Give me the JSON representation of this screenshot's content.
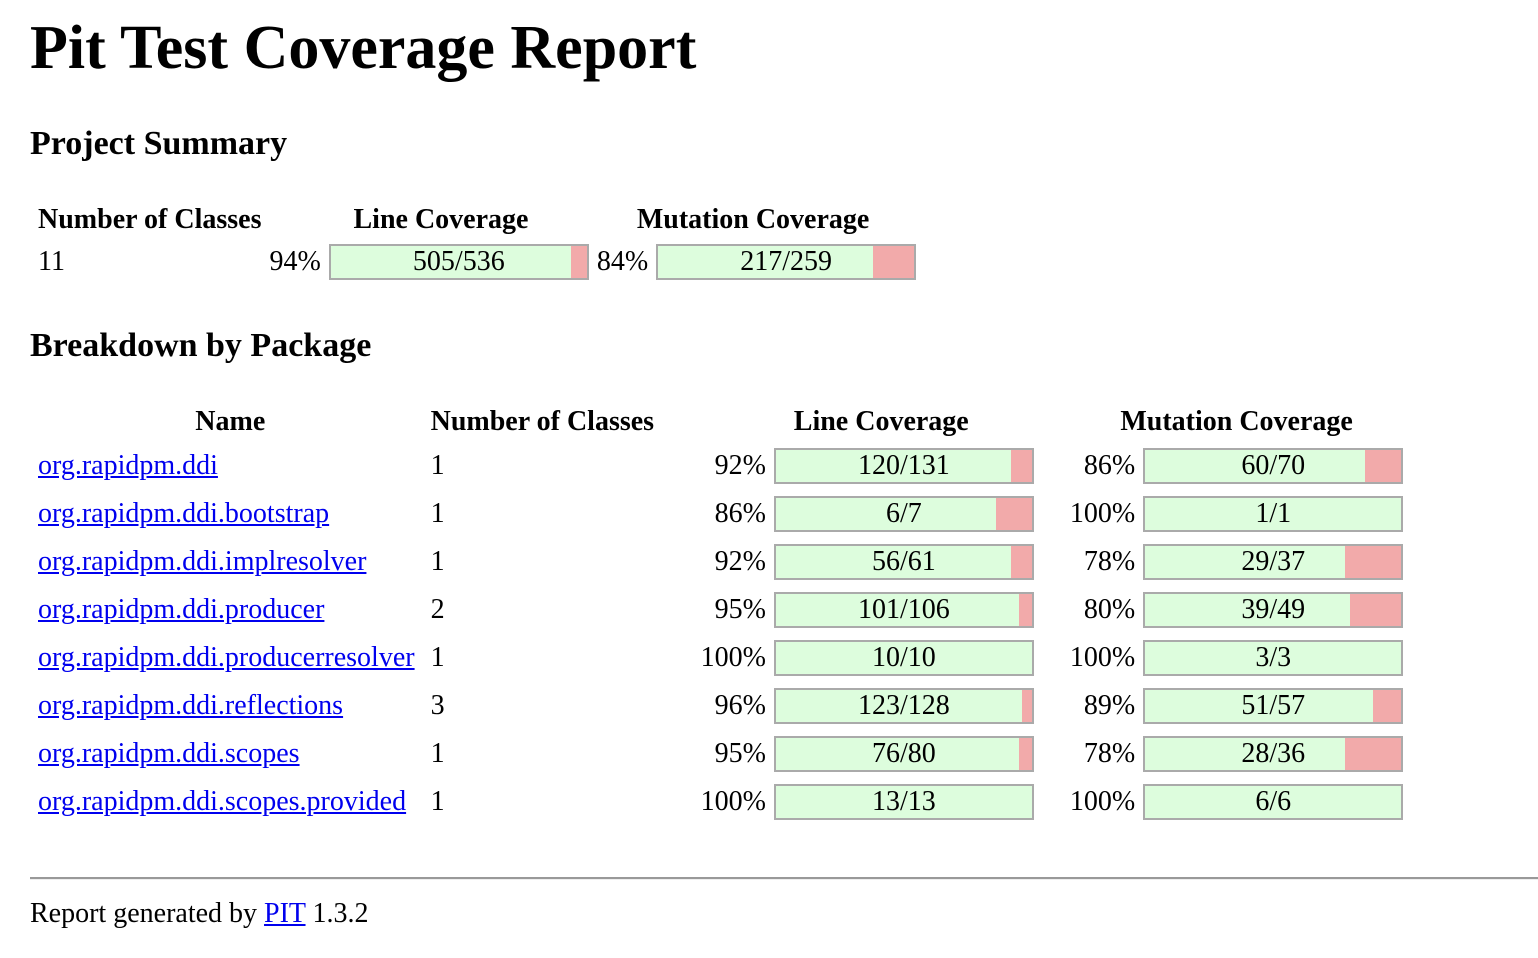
{
  "title": "Pit Test Coverage Report",
  "summary": {
    "heading": "Project Summary",
    "headers": {
      "classes": "Number of Classes",
      "line": "Line Coverage",
      "mutation": "Mutation Coverage"
    },
    "classes": "11",
    "line": {
      "pct": "94%",
      "text": "505/536",
      "fraction": 0.94
    },
    "mutation": {
      "pct": "84%",
      "text": "217/259",
      "fraction": 0.84
    }
  },
  "breakdown": {
    "heading": "Breakdown by Package",
    "headers": {
      "name": "Name",
      "classes": "Number of Classes",
      "line": "Line Coverage",
      "mutation": "Mutation Coverage"
    },
    "rows": [
      {
        "name": "org.rapidpm.ddi",
        "classes": "1",
        "line_pct": "92%",
        "line_text": "120/131",
        "line_fraction": 0.92,
        "mut_pct": "86%",
        "mut_text": "60/70",
        "mut_fraction": 0.86
      },
      {
        "name": "org.rapidpm.ddi.bootstrap",
        "classes": "1",
        "line_pct": "86%",
        "line_text": "6/7",
        "line_fraction": 0.86,
        "mut_pct": "100%",
        "mut_text": "1/1",
        "mut_fraction": 1.0
      },
      {
        "name": "org.rapidpm.ddi.implresolver",
        "classes": "1",
        "line_pct": "92%",
        "line_text": "56/61",
        "line_fraction": 0.92,
        "mut_pct": "78%",
        "mut_text": "29/37",
        "mut_fraction": 0.78
      },
      {
        "name": "org.rapidpm.ddi.producer",
        "classes": "2",
        "line_pct": "95%",
        "line_text": "101/106",
        "line_fraction": 0.95,
        "mut_pct": "80%",
        "mut_text": "39/49",
        "mut_fraction": 0.8
      },
      {
        "name": "org.rapidpm.ddi.producerresolver",
        "classes": "1",
        "line_pct": "100%",
        "line_text": "10/10",
        "line_fraction": 1.0,
        "mut_pct": "100%",
        "mut_text": "3/3",
        "mut_fraction": 1.0
      },
      {
        "name": "org.rapidpm.ddi.reflections",
        "classes": "3",
        "line_pct": "96%",
        "line_text": "123/128",
        "line_fraction": 0.96,
        "mut_pct": "89%",
        "mut_text": "51/57",
        "mut_fraction": 0.89
      },
      {
        "name": "org.rapidpm.ddi.scopes",
        "classes": "1",
        "line_pct": "95%",
        "line_text": "76/80",
        "line_fraction": 0.95,
        "mut_pct": "78%",
        "mut_text": "28/36",
        "mut_fraction": 0.78
      },
      {
        "name": "org.rapidpm.ddi.scopes.provided",
        "classes": "1",
        "line_pct": "100%",
        "line_text": "13/13",
        "line_fraction": 1.0,
        "mut_pct": "100%",
        "mut_text": "6/6",
        "mut_fraction": 1.0
      }
    ]
  },
  "footer": {
    "prefix": "Report generated by ",
    "link": "PIT",
    "version": " 1.3.2"
  },
  "colors": {
    "covered": "#ddfddd",
    "uncovered": "#f2aaaa",
    "link": "#0000ee"
  }
}
